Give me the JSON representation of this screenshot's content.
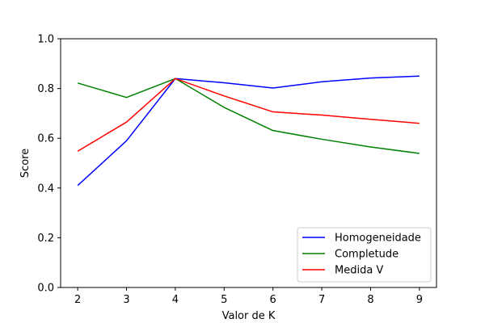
{
  "chart_data": {
    "type": "line",
    "title": "",
    "xlabel": "Valor de K",
    "ylabel": "Score",
    "x": [
      2,
      3,
      4,
      5,
      6,
      7,
      8,
      9
    ],
    "xlim": [
      1.65,
      9.35
    ],
    "ylim": [
      0.0,
      1.0
    ],
    "xticks": [
      2,
      3,
      4,
      5,
      6,
      7,
      8,
      9
    ],
    "yticks": [
      0.0,
      0.2,
      0.4,
      0.6,
      0.8,
      1.0
    ],
    "ytick_labels": [
      "0.0",
      "0.2",
      "0.4",
      "0.6",
      "0.8",
      "1.0"
    ],
    "grid": false,
    "legend_position": "lower-right",
    "series": [
      {
        "name": "Homogeneidade",
        "color": "#0000ff",
        "values": [
          0.41,
          0.59,
          0.84,
          0.823,
          0.802,
          0.827,
          0.842,
          0.85
        ]
      },
      {
        "name": "Completude",
        "color": "#008000",
        "values": [
          0.822,
          0.764,
          0.84,
          0.724,
          0.631,
          0.596,
          0.565,
          0.539
        ]
      },
      {
        "name": "Medida V",
        "color": "#ff0000",
        "values": [
          0.548,
          0.665,
          0.84,
          0.77,
          0.706,
          0.693,
          0.676,
          0.66
        ]
      }
    ]
  }
}
